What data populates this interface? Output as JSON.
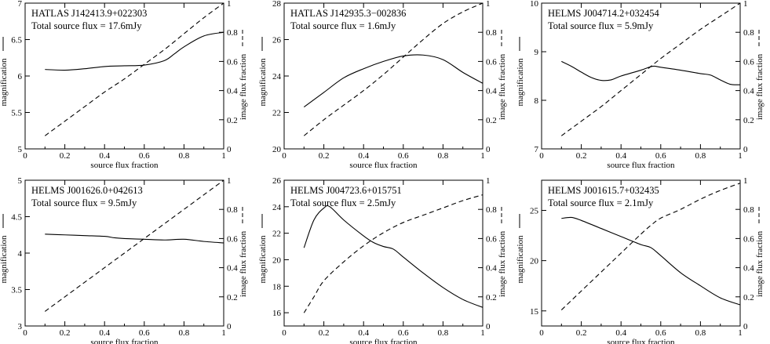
{
  "chart_data": [
    {
      "type": "line",
      "annotation": [
        "HATLAS J142413.9+022303",
        "Total source flux = 17.6mJy"
      ],
      "xlabel": "source flux fraction",
      "ylabel_left": "magnification",
      "ylabel_right": "image flux fraction",
      "xlim": [
        0,
        1
      ],
      "xticks": [
        "0",
        "0.2",
        "0.4",
        "0.6",
        "0.8",
        "1"
      ],
      "ylim_left": [
        5,
        7
      ],
      "yticks_left": [
        "5",
        "5.5",
        "6",
        "6.5",
        "7"
      ],
      "ylim_right": [
        0,
        1
      ],
      "yticks_right": [
        "0",
        "0.2",
        "0.4",
        "0.6",
        "0.8",
        "1"
      ],
      "series": [
        {
          "axis": "left",
          "line_style": "solid",
          "x": [
            0.1,
            0.2,
            0.3,
            0.4,
            0.5,
            0.6,
            0.7,
            0.75,
            0.8,
            0.9,
            1.0
          ],
          "y": [
            6.09,
            6.08,
            6.1,
            6.13,
            6.14,
            6.15,
            6.21,
            6.3,
            6.4,
            6.55,
            6.6
          ]
        },
        {
          "axis": "right",
          "line_style": "dashed",
          "x": [
            0.1,
            0.2,
            0.3,
            0.4,
            0.5,
            0.6,
            0.7,
            0.8,
            0.9,
            1.0
          ],
          "y": [
            0.09,
            0.19,
            0.29,
            0.39,
            0.48,
            0.58,
            0.68,
            0.79,
            0.9,
            1.0
          ]
        }
      ]
    },
    {
      "type": "line",
      "annotation": [
        "HATLAS J142935.3−002836",
        "Total source flux = 1.6mJy"
      ],
      "xlabel": "source flux fraction",
      "ylabel_left": "magnification",
      "ylabel_right": "image flux fraction",
      "xlim": [
        0,
        1
      ],
      "xticks": [
        "0",
        "0.2",
        "0.4",
        "0.6",
        "0.8",
        "1"
      ],
      "ylim_left": [
        20,
        28
      ],
      "yticks_left": [
        "20",
        "22",
        "24",
        "26",
        "28"
      ],
      "ylim_right": [
        0,
        1
      ],
      "yticks_right": [
        "0",
        "0.2",
        "0.4",
        "0.6",
        "0.8",
        "1"
      ],
      "series": [
        {
          "axis": "left",
          "line_style": "solid",
          "x": [
            0.1,
            0.2,
            0.3,
            0.4,
            0.5,
            0.6,
            0.7,
            0.8,
            0.9,
            1.0
          ],
          "y": [
            22.3,
            23.1,
            23.9,
            24.4,
            24.8,
            25.1,
            25.15,
            24.9,
            24.2,
            23.6
          ]
        },
        {
          "axis": "right",
          "line_style": "dashed",
          "x": [
            0.1,
            0.2,
            0.3,
            0.4,
            0.5,
            0.6,
            0.7,
            0.8,
            0.9,
            1.0
          ],
          "y": [
            0.09,
            0.2,
            0.3,
            0.4,
            0.51,
            0.63,
            0.75,
            0.86,
            0.94,
            1.0
          ]
        }
      ]
    },
    {
      "type": "line",
      "annotation": [
        "HELMS J004714.2+032454",
        "Total source flux = 5.9mJy"
      ],
      "xlabel": "source flux fraction",
      "ylabel_left": "magnification",
      "ylabel_right": "image flux fraction",
      "xlim": [
        0,
        1
      ],
      "xticks": [
        "0",
        "0.2",
        "0.4",
        "0.6",
        "0.8",
        "1"
      ],
      "ylim_left": [
        7,
        10
      ],
      "yticks_left": [
        "7",
        "8",
        "9",
        "10"
      ],
      "ylim_right": [
        0,
        1
      ],
      "yticks_right": [
        "0",
        "0.2",
        "0.4",
        "0.6",
        "0.8",
        "1"
      ],
      "series": [
        {
          "axis": "left",
          "line_style": "solid",
          "x": [
            0.1,
            0.15,
            0.2,
            0.25,
            0.3,
            0.35,
            0.4,
            0.5,
            0.56,
            0.6,
            0.7,
            0.8,
            0.85,
            0.9,
            0.95,
            1.0
          ],
          "y": [
            8.8,
            8.7,
            8.58,
            8.47,
            8.41,
            8.42,
            8.5,
            8.62,
            8.7,
            8.68,
            8.62,
            8.55,
            8.52,
            8.42,
            8.33,
            8.32
          ]
        },
        {
          "axis": "right",
          "line_style": "dashed",
          "x": [
            0.1,
            0.2,
            0.3,
            0.4,
            0.5,
            0.6,
            0.7,
            0.8,
            0.9,
            1.0
          ],
          "y": [
            0.09,
            0.19,
            0.29,
            0.4,
            0.51,
            0.62,
            0.72,
            0.82,
            0.91,
            1.0
          ]
        }
      ]
    },
    {
      "type": "line",
      "annotation": [
        "HELMS J001626.0+042613",
        "Total source flux = 9.5mJy"
      ],
      "xlabel": "source flux fraction",
      "ylabel_left": "magnification",
      "ylabel_right": "image flux fraction",
      "xlim": [
        0,
        1
      ],
      "xticks": [
        "0",
        "0.2",
        "0.4",
        "0.6",
        "0.8",
        "1"
      ],
      "ylim_left": [
        3,
        5
      ],
      "yticks_left": [
        "3",
        "3.5",
        "4",
        "4.5",
        "5"
      ],
      "ylim_right": [
        0,
        1
      ],
      "yticks_right": [
        "0",
        "0.2",
        "0.4",
        "0.6",
        "0.8",
        "1"
      ],
      "series": [
        {
          "axis": "left",
          "line_style": "solid",
          "x": [
            0.1,
            0.2,
            0.3,
            0.4,
            0.45,
            0.5,
            0.6,
            0.7,
            0.8,
            0.9,
            1.0
          ],
          "y": [
            4.26,
            4.25,
            4.24,
            4.23,
            4.21,
            4.2,
            4.19,
            4.18,
            4.19,
            4.16,
            4.14
          ]
        },
        {
          "axis": "right",
          "line_style": "dashed",
          "x": [
            0.1,
            0.2,
            0.3,
            0.4,
            0.5,
            0.6,
            0.7,
            0.8,
            0.9,
            1.0
          ],
          "y": [
            0.1,
            0.2,
            0.3,
            0.4,
            0.5,
            0.6,
            0.7,
            0.8,
            0.9,
            1.0
          ]
        }
      ]
    },
    {
      "type": "line",
      "annotation": [
        "HELMS J004723.6+015751",
        "Total source flux = 2.5mJy"
      ],
      "xlabel": "source flux fraction",
      "ylabel_left": "magnification",
      "ylabel_right": "image flux fraction",
      "xlim": [
        0,
        1
      ],
      "xticks": [
        "0",
        "0.2",
        "0.4",
        "0.6",
        "0.8",
        "1"
      ],
      "ylim_left": [
        15,
        26
      ],
      "yticks_left": [
        "16",
        "18",
        "20",
        "22",
        "24",
        "26"
      ],
      "ylim_right": [
        0,
        1
      ],
      "yticks_right": [
        "0",
        "0.2",
        "0.4",
        "0.6",
        "0.8",
        "1"
      ],
      "series": [
        {
          "axis": "left",
          "line_style": "solid",
          "x": [
            0.1,
            0.15,
            0.2,
            0.23,
            0.3,
            0.4,
            0.45,
            0.5,
            0.55,
            0.6,
            0.7,
            0.8,
            0.9,
            1.0
          ],
          "y": [
            20.9,
            23.0,
            23.9,
            24.0,
            23.0,
            21.8,
            21.3,
            21.0,
            20.8,
            20.2,
            19.0,
            17.9,
            17.0,
            16.4
          ]
        },
        {
          "axis": "right",
          "line_style": "dashed",
          "x": [
            0.1,
            0.15,
            0.2,
            0.3,
            0.4,
            0.5,
            0.6,
            0.7,
            0.8,
            0.9,
            1.0
          ],
          "y": [
            0.09,
            0.2,
            0.31,
            0.44,
            0.55,
            0.64,
            0.71,
            0.76,
            0.81,
            0.86,
            0.9
          ]
        }
      ]
    },
    {
      "type": "line",
      "annotation": [
        "HELMS J001615.7+032435",
        "Total source flux = 2.1mJy"
      ],
      "xlabel": "source flux fraction",
      "ylabel_left": "magnification",
      "ylabel_right": "image flux fraction",
      "xlim": [
        0,
        1
      ],
      "xticks": [
        "0",
        "0.2",
        "0.4",
        "0.6",
        "0.8",
        "1"
      ],
      "ylim_left": [
        13.5,
        28
      ],
      "yticks_left": [
        "15",
        "20",
        "25"
      ],
      "ylim_right": [
        0,
        1
      ],
      "yticks_right": [
        "0",
        "0.2",
        "0.4",
        "0.6",
        "0.8",
        "1"
      ],
      "series": [
        {
          "axis": "left",
          "line_style": "solid",
          "x": [
            0.1,
            0.15,
            0.2,
            0.3,
            0.4,
            0.5,
            0.55,
            0.6,
            0.7,
            0.8,
            0.9,
            1.0
          ],
          "y": [
            24.2,
            24.3,
            24.0,
            23.2,
            22.4,
            21.6,
            21.3,
            20.5,
            18.8,
            17.5,
            16.3,
            15.6
          ]
        },
        {
          "axis": "right",
          "line_style": "dashed",
          "x": [
            0.1,
            0.2,
            0.3,
            0.4,
            0.5,
            0.55,
            0.6,
            0.7,
            0.8,
            0.9,
            1.0
          ],
          "y": [
            0.11,
            0.24,
            0.37,
            0.5,
            0.63,
            0.69,
            0.74,
            0.8,
            0.87,
            0.93,
            0.98
          ]
        }
      ]
    }
  ]
}
